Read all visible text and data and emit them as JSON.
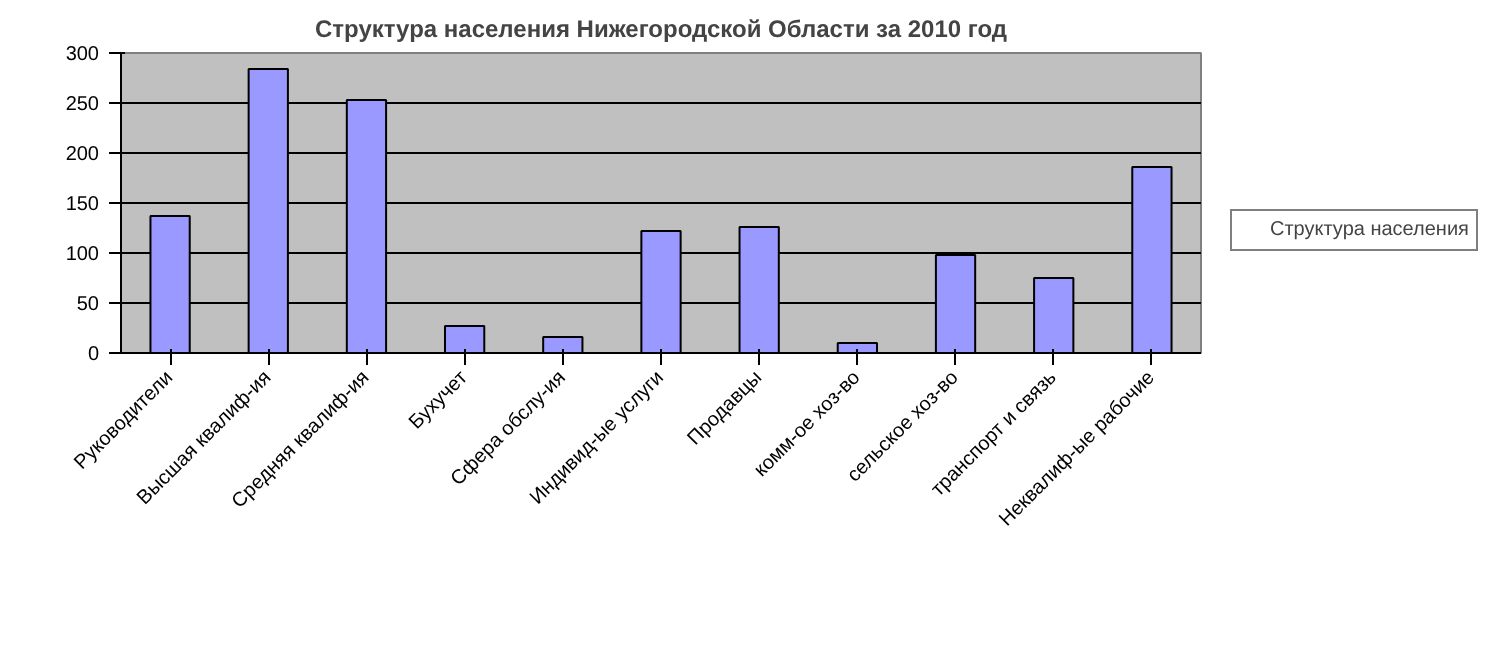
{
  "chart_data": {
    "type": "bar",
    "title": "Структура населения Нижегородской Области за 2010 год",
    "categories": [
      "Руководители",
      "Высшая квалиф-ия",
      "Средняя квалиф-ия",
      "Бухучет",
      "Сфера обслу-ия",
      "Индивид-ые услуги",
      "Продавцы",
      "комм-ое хоз-во",
      "сельское хоз-во",
      "транспорт и связь",
      "Неквалиф-ые рабочие"
    ],
    "series": [
      {
        "name": "Структура населения",
        "color": "#9999ff",
        "values": [
          137,
          284,
          253,
          27,
          16,
          122,
          126,
          10,
          98,
          75,
          186
        ]
      }
    ],
    "ylim": [
      0,
      300
    ],
    "yticks": [
      0,
      50,
      100,
      150,
      200,
      250,
      300
    ],
    "grid": "y",
    "legend": "right"
  }
}
